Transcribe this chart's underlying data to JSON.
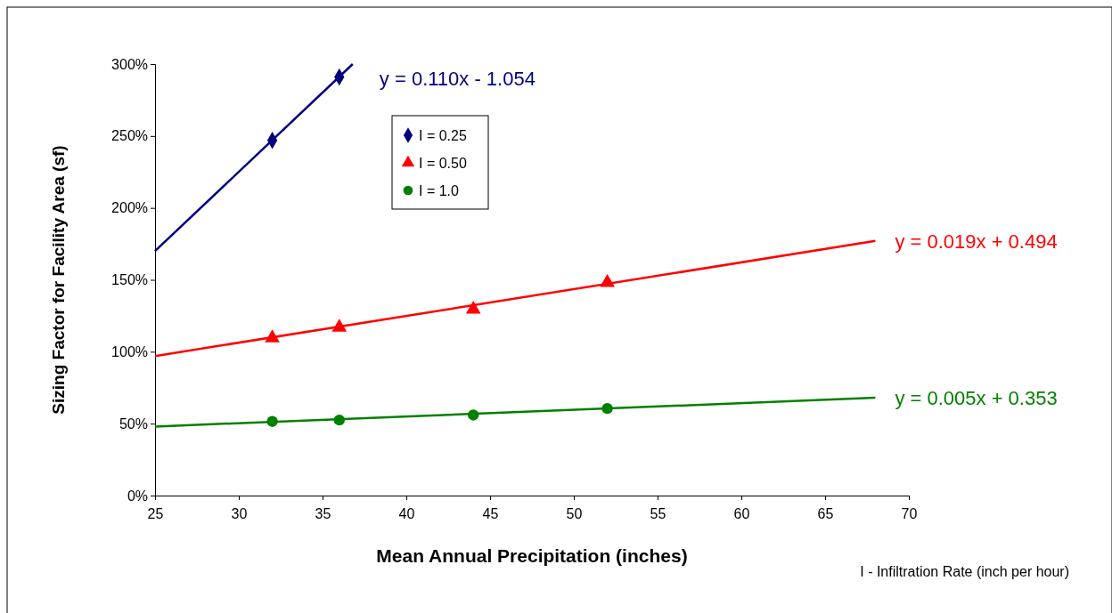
{
  "chart_data": {
    "type": "scatter",
    "xlabel": "Mean Annual Precipitation (inches)",
    "ylabel": "Sizing Factor for Facility Area (sf)",
    "xlim": [
      25,
      70
    ],
    "xticks": [
      25,
      30,
      35,
      40,
      45,
      50,
      55,
      60,
      65,
      70
    ],
    "ylim": [
      0,
      300
    ],
    "yticks": [
      {
        "value": 0,
        "label": "0%"
      },
      {
        "value": 50,
        "label": "50%"
      },
      {
        "value": 100,
        "label": "100%"
      },
      {
        "value": 150,
        "label": "150%"
      },
      {
        "value": 200,
        "label": "200%"
      },
      {
        "value": 250,
        "label": "250%"
      },
      {
        "value": 300,
        "label": "300%"
      }
    ],
    "grid": false,
    "legend": "top left",
    "series": [
      {
        "name": "I = 0.25",
        "color": "#000080",
        "marker": "diamond",
        "x": [
          32,
          36
        ],
        "values": [
          247,
          291
        ]
      },
      {
        "name": "I = 0.50",
        "color": "#ff0000",
        "marker": "triangle",
        "x": [
          32,
          36,
          44,
          52
        ],
        "values": [
          109.5,
          117,
          129.5,
          148
        ]
      },
      {
        "name": "I = 1.0",
        "color": "#008000",
        "marker": "circle",
        "x": [
          32,
          36,
          44,
          52
        ],
        "values": [
          51.5,
          52.5,
          56,
          60.5
        ]
      },
      {
        "type": "line",
        "name": "y = 0.110x - 1.054",
        "color": "#000080",
        "marker": "none",
        "x": [
          25,
          36.8
        ],
        "values": [
          170,
          300
        ]
      },
      {
        "type": "line",
        "name": "y = 0.019x + 0.494",
        "color": "#ff0000",
        "marker": "none",
        "x": [
          25,
          68
        ],
        "values": [
          97,
          177
        ]
      },
      {
        "type": "line",
        "name": "y = 0.005x + 0.353",
        "color": "#008000",
        "marker": "none",
        "x": [
          25,
          68
        ],
        "values": [
          48,
          68
        ]
      }
    ],
    "annotations": [
      "I - Infiltration Rate (inch per hour)"
    ]
  }
}
